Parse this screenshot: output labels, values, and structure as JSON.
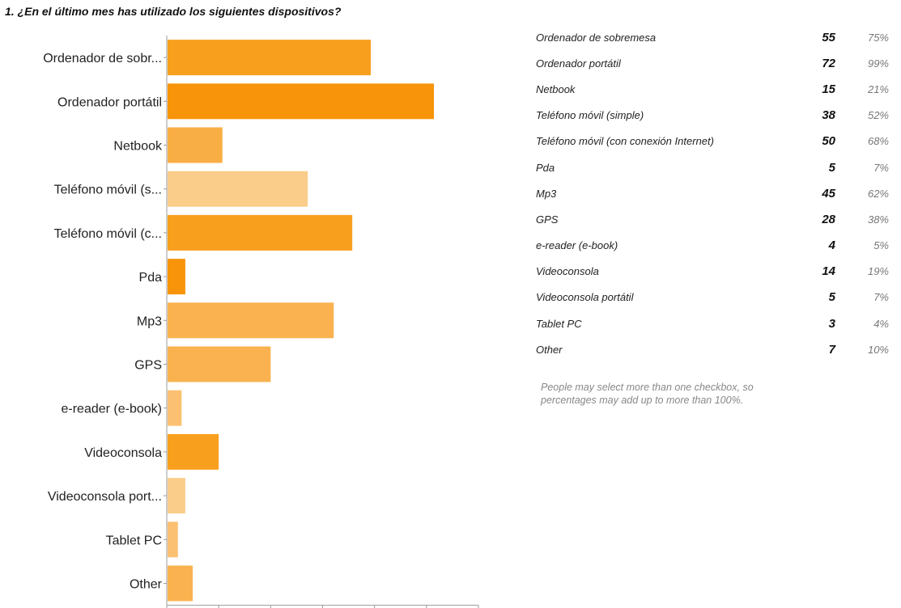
{
  "question": {
    "title": "1. ¿En el último mes has utilizado los siguientes dispositivos?"
  },
  "chart_data": {
    "type": "bar",
    "orientation": "horizontal",
    "categories": [
      "Ordenador de sobr...",
      "Ordenador portátil",
      "Netbook",
      "Teléfono móvil (s...",
      "Teléfono móvil (c...",
      "Pda",
      "Mp3",
      "GPS",
      "e-reader (e-book)",
      "Videoconsola",
      "Videoconsola port...",
      "Tablet PC",
      "Other"
    ],
    "values": [
      55,
      72,
      15,
      38,
      50,
      5,
      45,
      28,
      4,
      14,
      5,
      3,
      7
    ],
    "bar_colors": [
      "#f8a01e",
      "#f7940a",
      "#f9ad45",
      "#fbcd8a",
      "#f8a01e",
      "#f7940a",
      "#f9b24f",
      "#f9b24f",
      "#fbc071",
      "#f8a01e",
      "#fbcd8a",
      "#fbc071",
      "#f9b24f"
    ],
    "xlim": [
      0,
      84
    ],
    "xticks": [
      0,
      14,
      28,
      42,
      56,
      70,
      84
    ],
    "grid": false,
    "title": "",
    "xlabel": "",
    "ylabel": ""
  },
  "results": [
    {
      "label": "Ordenador de sobremesa",
      "count": "55",
      "percent": "75%"
    },
    {
      "label": "Ordenador portátil",
      "count": "72",
      "percent": "99%"
    },
    {
      "label": "Netbook",
      "count": "15",
      "percent": "21%"
    },
    {
      "label": "Teléfono móvil (simple)",
      "count": "38",
      "percent": "52%"
    },
    {
      "label": "Teléfono móvil (con conexión Internet)",
      "count": "50",
      "percent": "68%"
    },
    {
      "label": "Pda",
      "count": "5",
      "percent": "7%"
    },
    {
      "label": "Mp3",
      "count": "45",
      "percent": "62%"
    },
    {
      "label": "GPS",
      "count": "28",
      "percent": "38%"
    },
    {
      "label": "e-reader (e-book)",
      "count": "4",
      "percent": "5%"
    },
    {
      "label": "Videoconsola",
      "count": "14",
      "percent": "19%"
    },
    {
      "label": "Videoconsola portátil",
      "count": "5",
      "percent": "7%"
    },
    {
      "label": "Tablet PC",
      "count": "3",
      "percent": "4%"
    },
    {
      "label": "Other",
      "count": "7",
      "percent": "10%"
    }
  ],
  "footnote": {
    "line1": "People may select more than one checkbox, so",
    "line2": "percentages may add up to more than 100%."
  }
}
